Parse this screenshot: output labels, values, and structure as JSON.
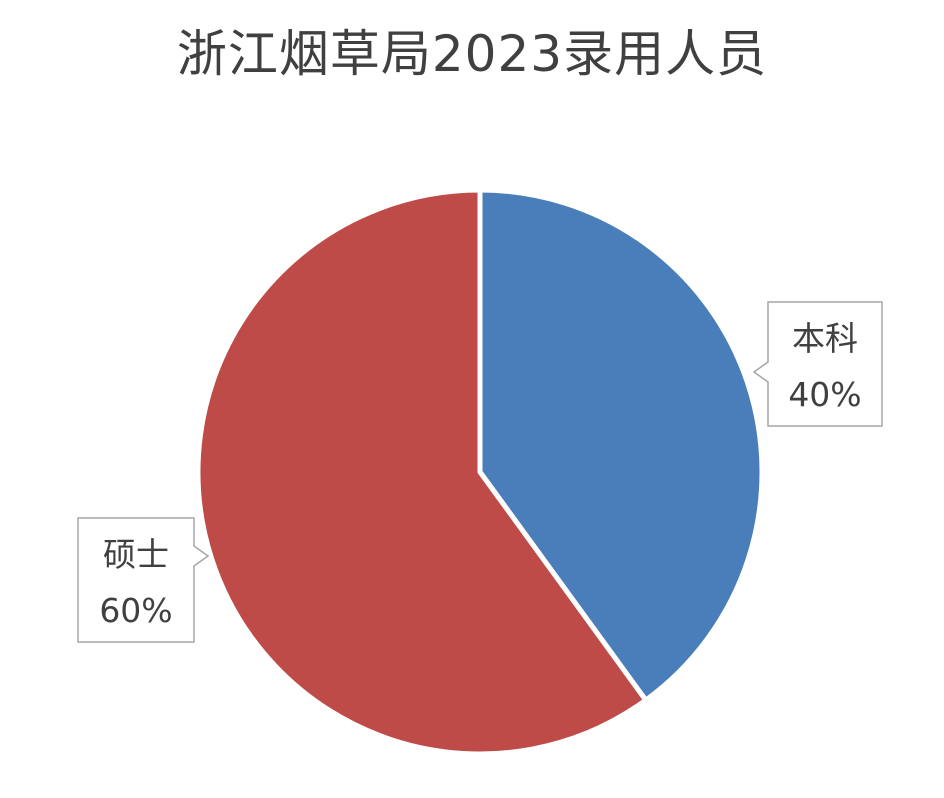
{
  "chart_data": {
    "type": "pie",
    "title": "浙江烟草局2023录用人员",
    "categories": [
      "本科",
      "硕士"
    ],
    "values": [
      40,
      60
    ],
    "value_labels": [
      "40%",
      "60%"
    ],
    "colors": [
      "#4a7ebb",
      "#be4b48"
    ],
    "start_angle": "12 o'clock, clockwise",
    "data_labels": "callouts outside slices",
    "legend": "none"
  }
}
